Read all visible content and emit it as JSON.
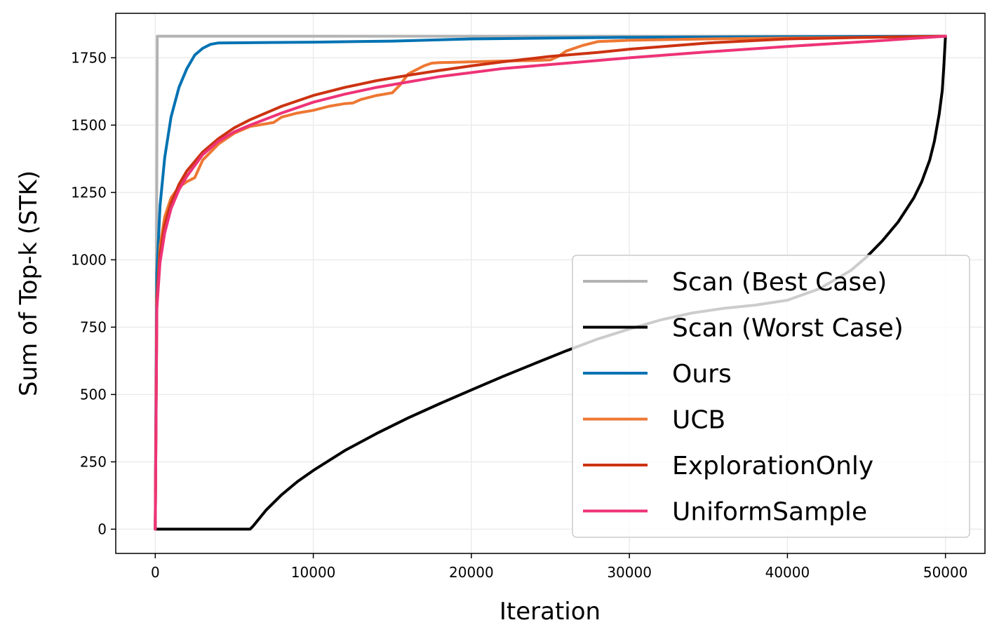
{
  "chart_data": {
    "type": "line",
    "xlabel": "Iteration",
    "ylabel": "Sum of Top-k (STK)",
    "xlim": [
      -2500,
      52500
    ],
    "ylim": [
      -90,
      1915
    ],
    "xticks": [
      0,
      10000,
      20000,
      30000,
      40000,
      50000
    ],
    "yticks": [
      0,
      250,
      500,
      750,
      1000,
      1250,
      1500,
      1750
    ],
    "xtick_labels": [
      "0",
      "10000",
      "20000",
      "30000",
      "40000",
      "50000"
    ],
    "ytick_labels": [
      "0",
      "250",
      "500",
      "750",
      "1000",
      "1250",
      "1500",
      "1750"
    ],
    "grid": true,
    "legend_position": "lower-right",
    "series": [
      {
        "name": "Scan (Best Case)",
        "color": "#b3b3b3",
        "x": [
          0,
          70,
          130,
          50000
        ],
        "y": [
          0,
          900,
          1830,
          1830
        ]
      },
      {
        "name": "Scan (Worst Case)",
        "color": "#000000",
        "x": [
          0,
          6000,
          6200,
          7000,
          8000,
          9000,
          10000,
          12000,
          14000,
          16000,
          18000,
          20000,
          22000,
          24000,
          26000,
          28000,
          30000,
          32000,
          34000,
          36000,
          38000,
          40000,
          42000,
          44000,
          45000,
          46000,
          47000,
          48000,
          48500,
          49000,
          49300,
          49600,
          49800,
          49900,
          50000
        ],
        "y": [
          0,
          0,
          12,
          70,
          128,
          177,
          218,
          292,
          355,
          413,
          466,
          517,
          567,
          615,
          662,
          706,
          743,
          777,
          803,
          820,
          832,
          850,
          892,
          960,
          1010,
          1070,
          1140,
          1230,
          1290,
          1370,
          1440,
          1540,
          1630,
          1720,
          1830
        ]
      },
      {
        "name": "Ours",
        "color": "#0072b2",
        "x": [
          0,
          100,
          300,
          600,
          1000,
          1500,
          2000,
          2500,
          3000,
          3500,
          4000,
          10000,
          15000,
          20000,
          25000,
          30000,
          40000,
          50000
        ],
        "y": [
          0,
          950,
          1200,
          1380,
          1530,
          1640,
          1710,
          1760,
          1785,
          1800,
          1805,
          1808,
          1812,
          1820,
          1823,
          1826,
          1828,
          1830
        ]
      },
      {
        "name": "UCB",
        "color": "#ee7733",
        "x": [
          0,
          100,
          300,
          600,
          1000,
          1500,
          2000,
          2500,
          3000,
          4000,
          5000,
          6000,
          7000,
          7500,
          8000,
          9000,
          10000,
          11000,
          12000,
          12500,
          13000,
          14000,
          15000,
          15500,
          16000,
          17000,
          17500,
          18000,
          20000,
          22000,
          24000,
          25000,
          25500,
          26000,
          27000,
          28000,
          30000,
          35000,
          40000,
          45000,
          50000
        ],
        "y": [
          0,
          850,
          1050,
          1160,
          1230,
          1270,
          1290,
          1305,
          1370,
          1430,
          1470,
          1495,
          1505,
          1510,
          1530,
          1545,
          1555,
          1570,
          1580,
          1582,
          1595,
          1610,
          1620,
          1650,
          1690,
          1720,
          1730,
          1732,
          1735,
          1738,
          1740,
          1742,
          1755,
          1775,
          1795,
          1810,
          1815,
          1820,
          1823,
          1826,
          1830
        ]
      },
      {
        "name": "ExplorationOnly",
        "color": "#cc3311",
        "x": [
          0,
          100,
          300,
          600,
          1000,
          1500,
          2000,
          3000,
          4000,
          5000,
          6000,
          8000,
          10000,
          12000,
          14000,
          16000,
          18000,
          20000,
          22000,
          25000,
          28000,
          30000,
          35000,
          40000,
          45000,
          50000
        ],
        "y": [
          0,
          850,
          1020,
          1130,
          1210,
          1280,
          1330,
          1400,
          1450,
          1490,
          1520,
          1570,
          1610,
          1640,
          1665,
          1685,
          1703,
          1720,
          1735,
          1755,
          1770,
          1782,
          1805,
          1820,
          1826,
          1830
        ]
      },
      {
        "name": "UniformSample",
        "color": "#ee3377",
        "x": [
          0,
          100,
          300,
          600,
          1000,
          1500,
          2000,
          3000,
          4000,
          5000,
          6000,
          8000,
          10000,
          12000,
          14000,
          16000,
          18000,
          20000,
          22000,
          25000,
          28000,
          30000,
          35000,
          40000,
          45000,
          50000
        ],
        "y": [
          0,
          820,
          990,
          1100,
          1190,
          1260,
          1310,
          1390,
          1440,
          1475,
          1500,
          1545,
          1585,
          1615,
          1640,
          1660,
          1680,
          1695,
          1710,
          1725,
          1740,
          1750,
          1772,
          1792,
          1810,
          1830
        ]
      }
    ]
  }
}
